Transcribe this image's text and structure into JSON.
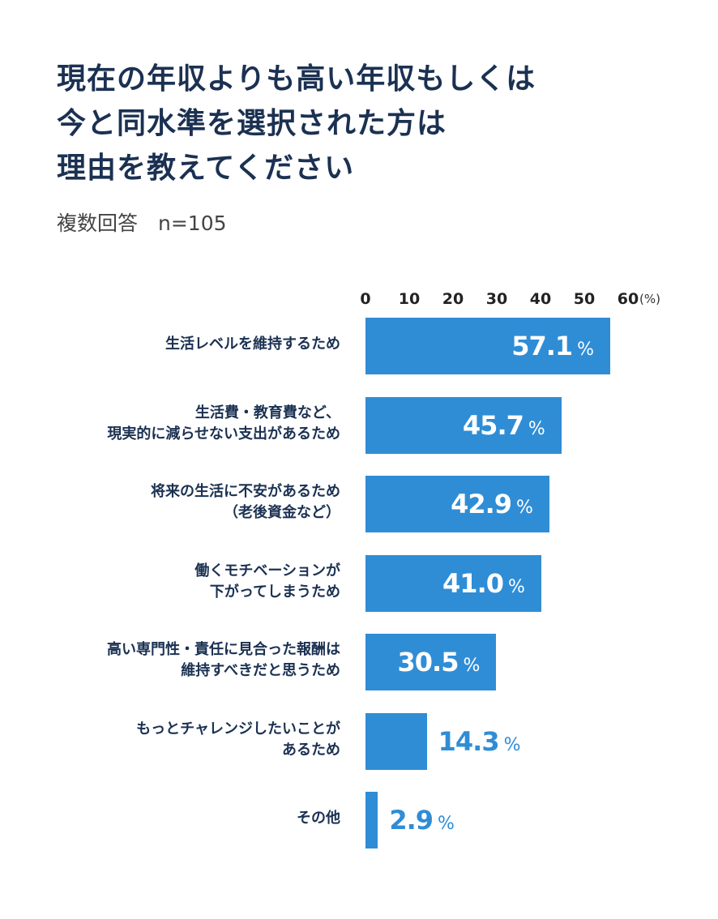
{
  "title_lines": [
    "現在の年収よりも高い年収もしくは",
    "今と同水準を選択された方は",
    "理由を教えてください"
  ],
  "subtitle": "複数回答　n=105",
  "chart_data": {
    "type": "bar",
    "orientation": "horizontal",
    "categories": [
      "生活レベルを維持するため",
      "生活費・教育費など、\n現実的に減らせない支出があるため",
      "将来の生活に不安があるため\n（老後資金など）",
      "働くモチベーションが\n下がってしまうため",
      "高い専門性・責任に見合った報酬は\n維持すべきだと思うため",
      "もっとチャレンジしたいことが\nあるため",
      "その他"
    ],
    "values": [
      57.1,
      45.7,
      42.9,
      41.0,
      30.5,
      14.3,
      2.9
    ],
    "value_labels": [
      "57.1",
      "45.7",
      "42.9",
      "41.0",
      "30.5",
      "14.3",
      "2.9"
    ],
    "value_unit": "%",
    "xlim": [
      0,
      60
    ],
    "x_ticks": [
      "0",
      "10",
      "20",
      "30",
      "40",
      "50",
      "60"
    ],
    "x_unit_label": "(%)",
    "xaxis_position": "top",
    "grid": false,
    "bar_color": "#2f8dd6",
    "label_inside_color": "#ffffff",
    "label_outside_color": "#2f8dd6"
  }
}
